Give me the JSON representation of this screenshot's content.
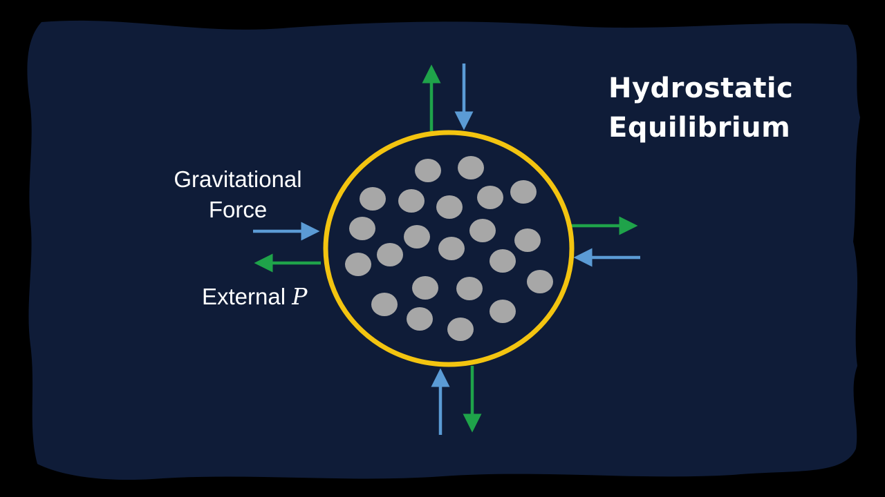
{
  "title": {
    "line1": "Hydrostatic",
    "line2": "Equilibrium"
  },
  "labels": {
    "gravitational_line1": "Gravitational",
    "gravitational_line2": "Force",
    "external": "External",
    "external_symbol": "P"
  },
  "colors": {
    "background_blob": "#0f1c38",
    "outer_frame": "#000000",
    "boundary": "#f3c410",
    "particle": "#a7a7a7",
    "gravity_arrow": "#5b9bd5",
    "pressure_arrow": "#1fa34a",
    "text": "#ffffff"
  },
  "legend": [
    {
      "arrow": "gravity_arrow",
      "meaning_ref": "labels.gravitational_line1"
    },
    {
      "arrow": "pressure_arrow",
      "meaning_ref": "labels.external"
    }
  ]
}
